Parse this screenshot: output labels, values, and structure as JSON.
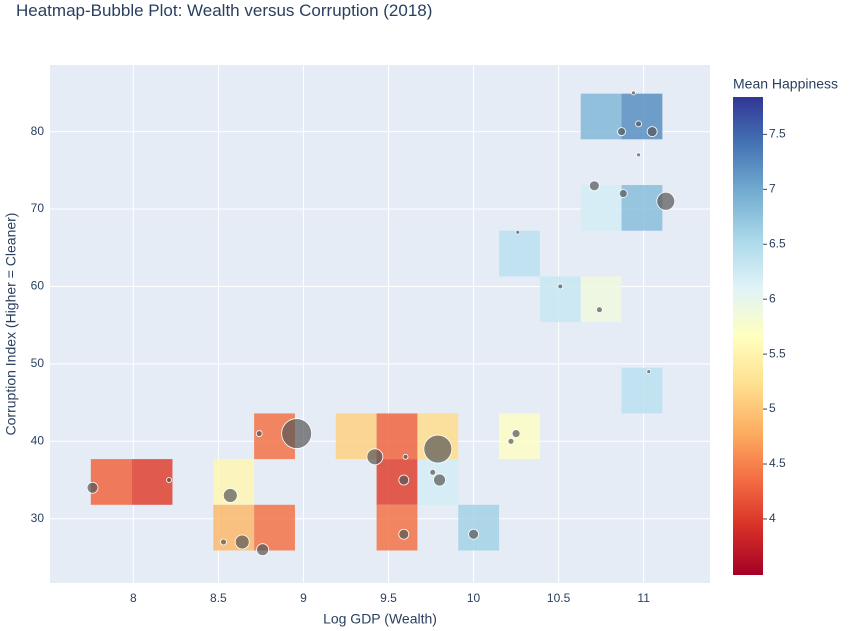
{
  "chart_data": {
    "type": "heatmap",
    "title": "Heatmap-Bubble Plot: Wealth versus Corruption (2018)",
    "x_label": "Log GDP (Wealth)",
    "y_label": "Corruption Index (Higher = Cleaner)",
    "colorbar_title": "Mean Happiness",
    "xlim": [
      7.51,
      11.39
    ],
    "ylim": [
      21.7,
      88.6
    ],
    "zlim": [
      3.49,
      7.84
    ],
    "xticks": [
      8,
      8.5,
      9,
      9.5,
      10,
      10.5,
      11
    ],
    "yticks": [
      30,
      40,
      50,
      60,
      70,
      80
    ],
    "zticks": [
      4,
      4.5,
      5,
      5.5,
      6,
      6.5,
      7,
      7.5
    ],
    "grid": true,
    "colorscale": [
      "#a50026",
      "#d73027",
      "#f46d43",
      "#fdae61",
      "#fee090",
      "#ffffbf",
      "#e0f3f8",
      "#abd9e9",
      "#74add1",
      "#4575b4",
      "#313695"
    ],
    "cells": [
      {
        "x": [
          7.75,
          7.99
        ],
        "y": [
          31.8,
          37.7
        ],
        "z": 4.3
      },
      {
        "x": [
          7.99,
          8.23
        ],
        "y": [
          31.8,
          37.7
        ],
        "z": 4.05
      },
      {
        "x": [
          8.47,
          8.71
        ],
        "y": [
          31.8,
          37.7
        ],
        "z": 5.55
      },
      {
        "x": [
          9.43,
          9.67
        ],
        "y": [
          31.8,
          37.7
        ],
        "z": 4.05
      },
      {
        "x": [
          9.67,
          9.91
        ],
        "y": [
          31.8,
          37.7
        ],
        "z": 6.2
      },
      {
        "x": [
          8.47,
          8.71
        ],
        "y": [
          25.9,
          31.8
        ],
        "z": 4.9
      },
      {
        "x": [
          8.71,
          8.95
        ],
        "y": [
          25.9,
          31.8
        ],
        "z": 4.4
      },
      {
        "x": [
          9.43,
          9.67
        ],
        "y": [
          25.9,
          31.8
        ],
        "z": 4.4
      },
      {
        "x": [
          9.91,
          10.15
        ],
        "y": [
          25.9,
          31.8
        ],
        "z": 6.6
      },
      {
        "x": [
          8.71,
          8.95
        ],
        "y": [
          37.7,
          43.6
        ],
        "z": 4.4
      },
      {
        "x": [
          9.19,
          9.43
        ],
        "y": [
          37.7,
          43.6
        ],
        "z": 5.1
      },
      {
        "x": [
          9.43,
          9.67
        ],
        "y": [
          37.7,
          43.6
        ],
        "z": 4.3
      },
      {
        "x": [
          9.67,
          9.91
        ],
        "y": [
          37.7,
          43.6
        ],
        "z": 5.2
      },
      {
        "x": [
          10.15,
          10.39
        ],
        "y": [
          37.7,
          43.6
        ],
        "z": 5.7
      },
      {
        "x": [
          10.87,
          11.11
        ],
        "y": [
          43.6,
          49.5
        ],
        "z": 6.4
      },
      {
        "x": [
          10.39,
          10.63
        ],
        "y": [
          55.4,
          61.3
        ],
        "z": 6.3
      },
      {
        "x": [
          10.63,
          10.87
        ],
        "y": [
          55.4,
          61.3
        ],
        "z": 5.9
      },
      {
        "x": [
          10.15,
          10.39
        ],
        "y": [
          61.3,
          67.2
        ],
        "z": 6.4
      },
      {
        "x": [
          10.63,
          10.87
        ],
        "y": [
          67.2,
          73.1
        ],
        "z": 6.2
      },
      {
        "x": [
          10.87,
          11.11
        ],
        "y": [
          67.2,
          73.1
        ],
        "z": 6.8
      },
      {
        "x": [
          10.63,
          10.87
        ],
        "y": [
          79.0,
          84.9
        ],
        "z": 6.85
      },
      {
        "x": [
          10.87,
          11.11
        ],
        "y": [
          79.0,
          84.9
        ],
        "z": 7.2
      }
    ],
    "bubbles": {
      "color": "#555555",
      "x": [
        7.76,
        8.21,
        8.57,
        8.53,
        8.64,
        8.76,
        8.74,
        8.96,
        9.42,
        9.6,
        9.59,
        9.76,
        9.8,
        9.79,
        9.59,
        10.0,
        10.22,
        10.25,
        10.26,
        10.51,
        10.74,
        11.03,
        10.71,
        10.88,
        11.13,
        10.87,
        10.97,
        11.05,
        10.97,
        10.94
      ],
      "y": [
        34,
        35,
        33,
        27,
        27,
        26,
        41,
        41,
        38,
        38,
        35,
        36,
        35,
        39,
        28,
        28,
        40,
        41,
        67,
        60,
        57,
        49,
        73,
        72,
        71,
        80,
        81,
        80,
        77,
        85
      ],
      "size": [
        11,
        5,
        14,
        6,
        14,
        12,
        6,
        30,
        16,
        5,
        10,
        6,
        12,
        28,
        10,
        10,
        6,
        8,
        4,
        5,
        6,
        4,
        10,
        8,
        18,
        8,
        6,
        10,
        4,
        4
      ]
    }
  }
}
